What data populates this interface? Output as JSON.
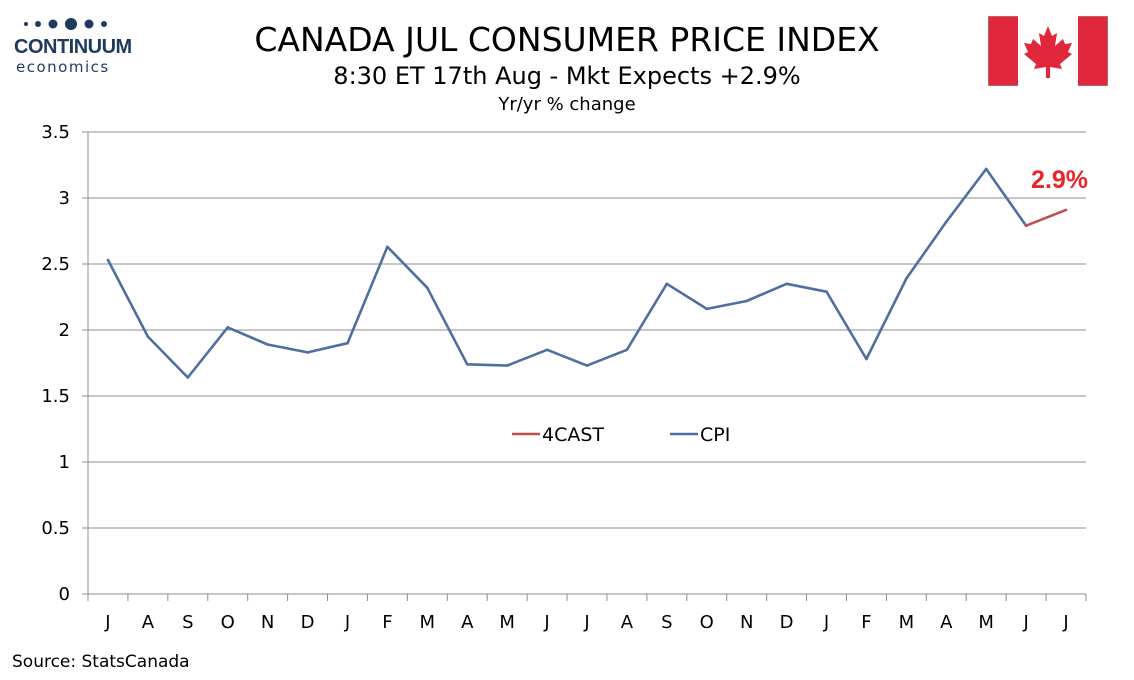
{
  "logo": {
    "name": "CONTINUUM",
    "sub": "economics",
    "color": "#1f3b5c"
  },
  "header": {
    "title": "CANADA JUL CONSUMER PRICE INDEX",
    "subtitle": "8:30 ET 17th Aug - Mkt Expects +2.9%",
    "unit": "Yr/yr % change"
  },
  "flag": {
    "icon": "canada-flag-icon",
    "red": "#e0273c"
  },
  "source": "Source: StatsCanada",
  "chart_data": {
    "type": "line",
    "categories": [
      "J",
      "A",
      "S",
      "O",
      "N",
      "D",
      "J",
      "F",
      "M",
      "A",
      "M",
      "J",
      "J",
      "A",
      "S",
      "O",
      "N",
      "D",
      "J",
      "F",
      "M",
      "A",
      "M",
      "J",
      "J"
    ],
    "ylim": [
      0,
      3.5
    ],
    "yticks": [
      0,
      0.5,
      1,
      1.5,
      2,
      2.5,
      3,
      3.5
    ],
    "ytick_labels": [
      "0",
      "0.5",
      "1",
      "1.5",
      "2",
      "2.5",
      "3",
      "3.5"
    ],
    "grid": true,
    "legend_placement": "center",
    "series": [
      {
        "name": "CPI",
        "color": "#4f6fa0",
        "values": [
          2.53,
          1.95,
          1.64,
          2.02,
          1.89,
          1.83,
          1.9,
          2.63,
          2.32,
          1.74,
          1.73,
          1.85,
          1.73,
          1.85,
          2.35,
          2.16,
          2.22,
          2.35,
          2.29,
          1.78,
          2.39,
          2.82,
          3.22,
          2.79,
          null
        ]
      },
      {
        "name": "4CAST",
        "color": "#c0504d",
        "values": [
          null,
          null,
          null,
          null,
          null,
          null,
          null,
          null,
          null,
          null,
          null,
          null,
          null,
          null,
          null,
          null,
          null,
          null,
          null,
          null,
          null,
          null,
          null,
          2.79,
          2.91
        ]
      }
    ],
    "annotations": [
      {
        "text": "2.9%",
        "category_index": 24,
        "value": 2.91,
        "color": "#e8262a"
      }
    ]
  }
}
